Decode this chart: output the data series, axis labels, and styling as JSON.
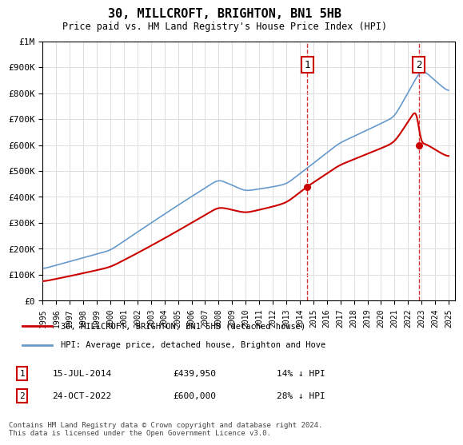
{
  "title": "30, MILLCROFT, BRIGHTON, BN1 5HB",
  "subtitle": "Price paid vs. HM Land Registry's House Price Index (HPI)",
  "ylabel_labels": [
    "£0",
    "£100K",
    "£200K",
    "£300K",
    "£400K",
    "£500K",
    "£600K",
    "£700K",
    "£800K",
    "£900K",
    "£1M"
  ],
  "ylim": [
    0,
    1000000
  ],
  "yticks": [
    0,
    100000,
    200000,
    300000,
    400000,
    500000,
    600000,
    700000,
    800000,
    900000,
    1000000
  ],
  "xlim_start": 1995.0,
  "xlim_end": 2025.5,
  "sale1_x": 2014.54,
  "sale1_y": 439950,
  "sale1_label": "1",
  "sale2_x": 2022.81,
  "sale2_y": 600000,
  "sale2_label": "2",
  "hpi_color": "#6699cc",
  "sale_line_color": "#cc0000",
  "annotation_box_color": "#cc0000",
  "grid_color": "#dddddd",
  "background_color": "#ffffff",
  "legend_label_red": "30, MILLCROFT, BRIGHTON, BN1 5HB (detached house)",
  "legend_label_blue": "HPI: Average price, detached house, Brighton and Hove",
  "annotation1_date": "15-JUL-2014",
  "annotation1_price": "£439,950",
  "annotation1_hpi": "14% ↓ HPI",
  "annotation2_date": "24-OCT-2022",
  "annotation2_price": "£600,000",
  "annotation2_hpi": "28% ↓ HPI",
  "footnote": "Contains HM Land Registry data © Crown copyright and database right 2024.\nThis data is licensed under the Open Government Licence v3.0.",
  "xticks": [
    1995,
    1996,
    1997,
    1998,
    1999,
    2000,
    2001,
    2002,
    2003,
    2004,
    2005,
    2006,
    2007,
    2008,
    2009,
    2010,
    2011,
    2012,
    2013,
    2014,
    2015,
    2016,
    2017,
    2018,
    2019,
    2020,
    2021,
    2022,
    2023,
    2024,
    2025
  ]
}
